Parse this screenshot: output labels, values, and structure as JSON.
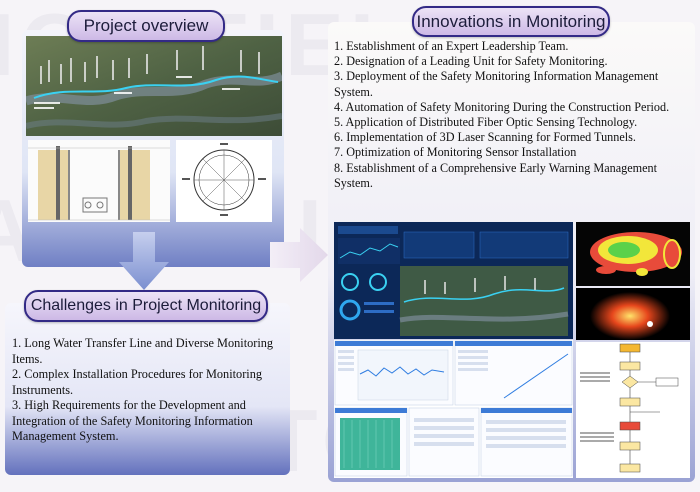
{
  "overview": {
    "title": "Project overview"
  },
  "challenges": {
    "title": "Challenges in Project Monitoring",
    "items": [
      "1. Long Water Transfer Line and Diverse Monitoring Items.",
      "2. Complex Installation Procedures for Monitoring Instruments.",
      "3. High Requirements for the Development and Integration of the Safety Monitoring Information Management System."
    ]
  },
  "innovations": {
    "title": "Innovations in Monitoring",
    "items": [
      "1. Establishment of an Expert Leadership Team.",
      "2. Designation of a Leading Unit for Safety Monitoring.",
      "3. Deployment of the Safety Monitoring Information  Management System.",
      "4. Automation of Safety Monitoring During the Construction Period.",
      "5. Application of Distributed Fiber Optic Sensing Technology.",
      "6. Implementation of 3D Laser Scanning for Formed Tunnels.",
      "7. Optimization of Monitoring Sensor Installation",
      "8. Establishment of a Comprehensive Early Warning Management System."
    ]
  },
  "colors": {
    "title_border": "#332a86",
    "title_fill": "#cdb9e6",
    "panel_blue": "#6f7fc4",
    "arrow": "#7b8fd0"
  }
}
